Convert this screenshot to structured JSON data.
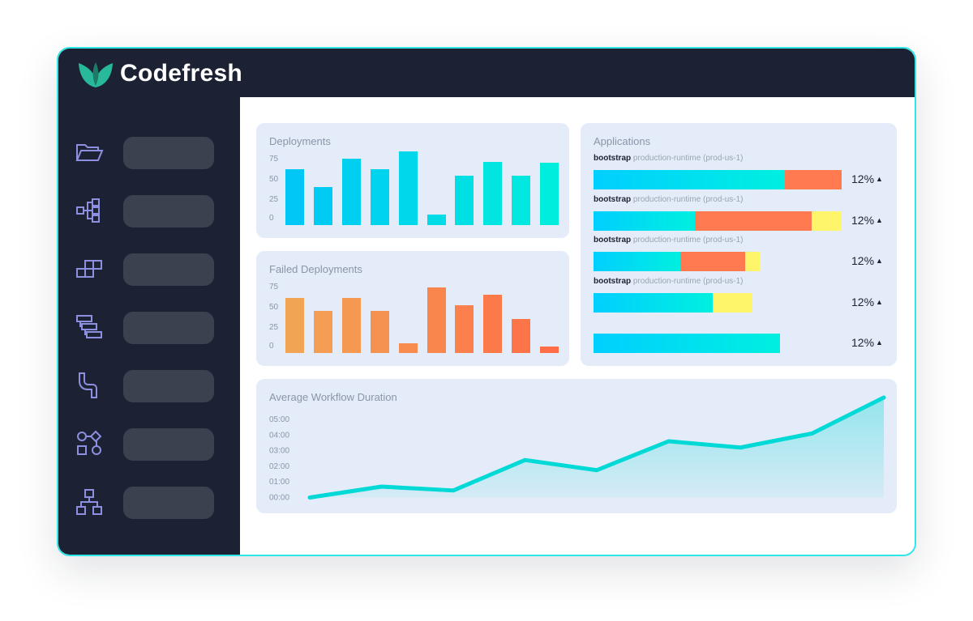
{
  "app": {
    "name": "Codefresh"
  },
  "sidebar": {
    "items": [
      {
        "icon": "folder-icon"
      },
      {
        "icon": "nodes-icon"
      },
      {
        "icon": "blocks-icon"
      },
      {
        "icon": "stacked-bars-icon"
      },
      {
        "icon": "pipe-icon"
      },
      {
        "icon": "shapes-workflow-icon"
      },
      {
        "icon": "hierarchy-icon"
      }
    ]
  },
  "deployments": {
    "title": "Deployments",
    "ticks": [
      "75",
      "50",
      "25",
      "0"
    ],
    "chart_data": {
      "type": "bar",
      "title": "Deployments",
      "ylim": [
        0,
        90
      ],
      "values": [
        62,
        42,
        74,
        62,
        82,
        12,
        55,
        70,
        55,
        69
      ],
      "colors": [
        "#00c7f5",
        "#00ecdc"
      ]
    }
  },
  "failed": {
    "title": "Failed Deployments",
    "ticks": [
      "75",
      "50",
      "25",
      "0"
    ],
    "chart_data": {
      "type": "bar",
      "title": "Failed Deployments",
      "ylim": [
        0,
        90
      ],
      "values": [
        61,
        47,
        61,
        47,
        11,
        73,
        53,
        65,
        38,
        7
      ],
      "colors": [
        "#f2a455",
        "#ff6e47"
      ]
    }
  },
  "applications": {
    "title": "Applications",
    "rows": [
      {
        "name": "bootstrap",
        "runtime": "production-runtime (prod-us-1)",
        "pct": "12%",
        "segments": [
          {
            "value": 0.77,
            "type": "cyan"
          },
          {
            "value": 0.23,
            "type": "orange"
          }
        ]
      },
      {
        "name": "bootstrap",
        "runtime": "production-runtime (prod-us-1)",
        "pct": "12%",
        "segments": [
          {
            "value": 0.41,
            "type": "cyan"
          },
          {
            "value": 0.47,
            "type": "orange"
          },
          {
            "value": 0.12,
            "type": "yellow"
          }
        ]
      },
      {
        "name": "bootstrap",
        "runtime": "production-runtime (prod-us-1)",
        "pct": "12%",
        "segments": [
          {
            "value": 0.35,
            "type": "cyan"
          },
          {
            "value": 0.26,
            "type": "orange"
          },
          {
            "value": 0.06,
            "type": "yellow"
          }
        ]
      },
      {
        "name": "bootstrap",
        "runtime": "production-runtime (prod-us-1)",
        "pct": "12%",
        "segments": [
          {
            "value": 0.48,
            "type": "cyan"
          },
          {
            "value": 0.16,
            "type": "yellow"
          }
        ]
      },
      {
        "name": "",
        "runtime": "",
        "pct": "12%",
        "segments": [
          {
            "value": 0.75,
            "type": "cyan"
          }
        ]
      }
    ],
    "colors": {
      "cyan": "#00cfff",
      "cyan_end": "#00efe0",
      "orange": "#ff7a50",
      "yellow": "#fff56a"
    },
    "arrow_icon": "triangle-up-icon"
  },
  "workflow": {
    "title": "Average Workflow Duration",
    "chart_data": {
      "type": "area",
      "title": "Average Workflow Duration",
      "yticks": [
        "05:00",
        "04:00",
        "03:00",
        "02:00",
        "01:00",
        "00:00"
      ],
      "ylim": [
        0,
        5
      ],
      "values": [
        0.0,
        0.7,
        0.45,
        2.4,
        1.75,
        3.6,
        3.2,
        4.1,
        6.4
      ],
      "color": "#00d9d6"
    }
  }
}
